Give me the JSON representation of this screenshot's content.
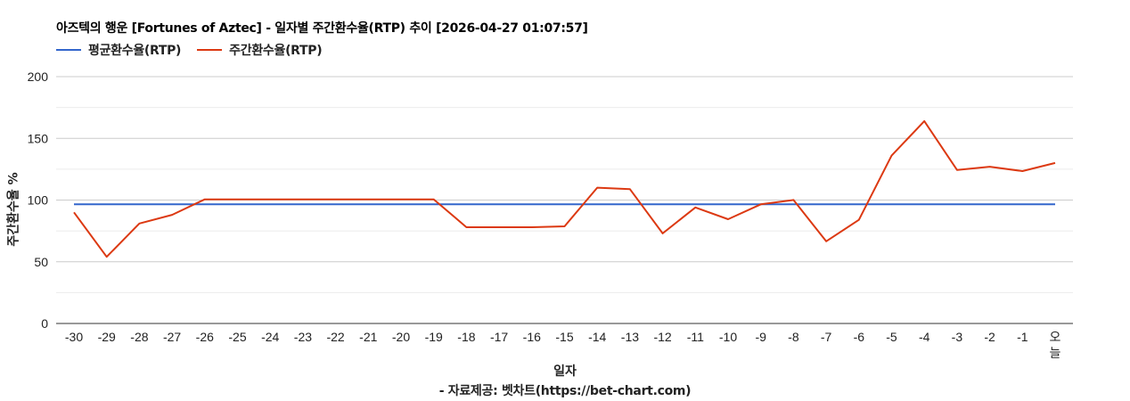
{
  "chart_data": {
    "type": "line",
    "title": "아즈텍의 행운 [Fortunes of Aztec] - 일자별 주간환수율(RTP) 추이 [2026-04-27 01:07:57]",
    "xlabel": "일자",
    "ylabel": "주간환수율 %",
    "source": "- 자료제공: 벳차트(https://bet-chart.com)",
    "ylim": [
      0,
      200
    ],
    "yticks": [
      0,
      50,
      100,
      150,
      200
    ],
    "grid": true,
    "legend_position": "top-left",
    "categories": [
      "-30",
      "-29",
      "-28",
      "-27",
      "-26",
      "-25",
      "-24",
      "-23",
      "-22",
      "-21",
      "-20",
      "-19",
      "-18",
      "-17",
      "-16",
      "-15",
      "-14",
      "-13",
      "-12",
      "-11",
      "-10",
      "-9",
      "-8",
      "-7",
      "-6",
      "-5",
      "-4",
      "-3",
      "-2",
      "-1",
      "오늘"
    ],
    "series": [
      {
        "name": "평균환수율(RTP)",
        "color": "#3366cc",
        "values": [
          96.5,
          96.5,
          96.5,
          96.5,
          96.5,
          96.5,
          96.5,
          96.5,
          96.5,
          96.5,
          96.5,
          96.5,
          96.5,
          96.5,
          96.5,
          96.5,
          96.5,
          96.5,
          96.5,
          96.5,
          96.5,
          96.5,
          96.5,
          96.5,
          96.5,
          96.5,
          96.5,
          96.5,
          96.5,
          96.5,
          96.5
        ]
      },
      {
        "name": "주간환수율(RTP)",
        "color": "#dc3912",
        "values": [
          90,
          54,
          81,
          88,
          100.6,
          100.6,
          100.6,
          100.6,
          100.6,
          100.6,
          100.6,
          100.6,
          78,
          78,
          78,
          78.7,
          110,
          108.8,
          73,
          94,
          84.5,
          96.5,
          100.1,
          66.6,
          84,
          136,
          164,
          124.4,
          127,
          123.5,
          130
        ]
      }
    ]
  }
}
